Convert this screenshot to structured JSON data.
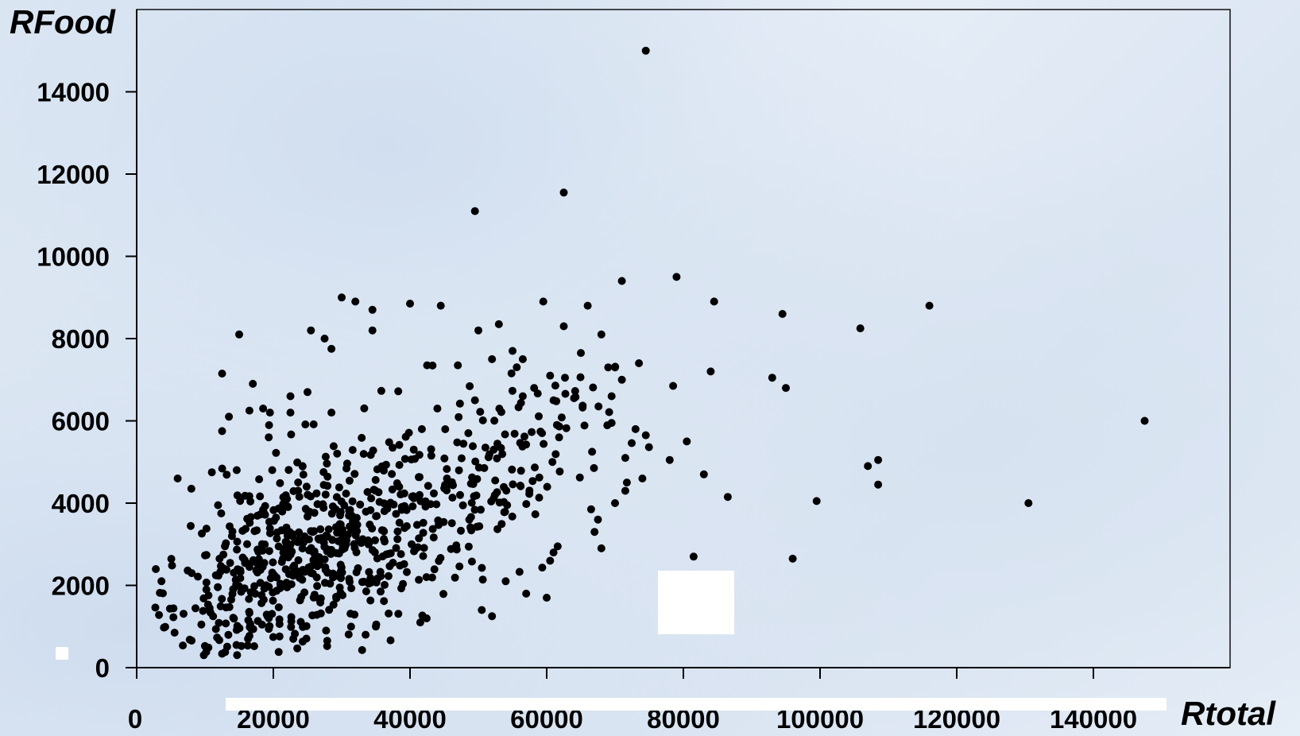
{
  "chart_data": {
    "type": "scatter",
    "title": "",
    "xlabel": "Rtotal",
    "ylabel": "RFood",
    "xlim": [
      0,
      160000
    ],
    "ylim": [
      0,
      16000
    ],
    "x_ticks": [
      0,
      20000,
      40000,
      60000,
      80000,
      100000,
      120000,
      140000
    ],
    "y_ticks": [
      0,
      2000,
      4000,
      6000,
      8000,
      10000,
      12000,
      14000
    ],
    "x_tick_labels": [
      "0",
      "20000",
      "40000",
      "60000",
      "80000",
      "100000",
      "120000",
      "140000"
    ],
    "y_tick_labels": [
      "0",
      "2000",
      "4000",
      "6000",
      "8000",
      "10000",
      "12000",
      "14000"
    ],
    "grid": false,
    "legend": "none",
    "marker_color": "#000000",
    "series": [
      {
        "points": [
          [
            74500,
            15000
          ],
          [
            62500,
            11550
          ],
          [
            49500,
            11100
          ],
          [
            71000,
            9400
          ],
          [
            79000,
            9500
          ],
          [
            84500,
            8900
          ],
          [
            59500,
            8900
          ],
          [
            94500,
            8600
          ],
          [
            105900,
            8250
          ],
          [
            116000,
            8800
          ],
          [
            66000,
            8800
          ],
          [
            40000,
            8850
          ],
          [
            44500,
            8800
          ],
          [
            30000,
            9000
          ],
          [
            32000,
            8900
          ],
          [
            34500,
            8700
          ],
          [
            62500,
            8300
          ],
          [
            53000,
            8350
          ],
          [
            50000,
            8200
          ],
          [
            34500,
            8200
          ],
          [
            25500,
            8200
          ],
          [
            27500,
            8000
          ],
          [
            15000,
            8100
          ],
          [
            68000,
            8100
          ],
          [
            28500,
            7750
          ],
          [
            55000,
            7700
          ],
          [
            65000,
            7650
          ],
          [
            73500,
            7400
          ],
          [
            70000,
            7300
          ],
          [
            69000,
            7300
          ],
          [
            56500,
            7500
          ],
          [
            52000,
            7500
          ],
          [
            47000,
            7350
          ],
          [
            42500,
            7350
          ],
          [
            12500,
            7150
          ],
          [
            84000,
            7200
          ],
          [
            93000,
            7050
          ],
          [
            95000,
            6800
          ],
          [
            78500,
            6850
          ],
          [
            71000,
            7000
          ],
          [
            69500,
            6600
          ],
          [
            60500,
            7100
          ],
          [
            17000,
            6900
          ],
          [
            22500,
            6600
          ],
          [
            25000,
            6700
          ],
          [
            64000,
            6550
          ],
          [
            61000,
            6500
          ],
          [
            56500,
            6600
          ],
          [
            44000,
            6300
          ],
          [
            49500,
            6500
          ],
          [
            18500,
            6300
          ],
          [
            19500,
            6200
          ],
          [
            16500,
            6250
          ],
          [
            22500,
            6200
          ],
          [
            13500,
            6100
          ],
          [
            12500,
            5750
          ],
          [
            28500,
            6200
          ],
          [
            147500,
            6000
          ],
          [
            73000,
            5800
          ],
          [
            74500,
            5650
          ],
          [
            69500,
            5950
          ],
          [
            61500,
            5900
          ],
          [
            80500,
            5500
          ],
          [
            83000,
            4700
          ],
          [
            86500,
            4150
          ],
          [
            99500,
            4050
          ],
          [
            130500,
            4000
          ],
          [
            108500,
            5050
          ],
          [
            107000,
            4900
          ],
          [
            108500,
            4450
          ],
          [
            96000,
            2650
          ],
          [
            81500,
            2700
          ],
          [
            78000,
            5050
          ],
          [
            71500,
            5100
          ],
          [
            70000,
            4000
          ],
          [
            71500,
            4300
          ],
          [
            74000,
            4600
          ],
          [
            66500,
            3850
          ],
          [
            67500,
            3600
          ],
          [
            67000,
            3300
          ],
          [
            68000,
            2900
          ],
          [
            60500,
            2600
          ],
          [
            61000,
            2800
          ],
          [
            60000,
            1700
          ],
          [
            57000,
            1800
          ],
          [
            54000,
            2100
          ],
          [
            52000,
            1250
          ],
          [
            50500,
            1400
          ],
          [
            41500,
            1100
          ],
          [
            35000,
            1000
          ],
          [
            33500,
            800
          ],
          [
            6000,
            4600
          ],
          [
            8000,
            4350
          ],
          [
            11000,
            4750
          ]
        ],
        "clusters": [
          {
            "center": [
              23000,
              2700
            ],
            "spread": [
              9000,
              1150
            ],
            "count": 480
          },
          {
            "center": [
              41000,
              3900
            ],
            "spread": [
              11000,
              1200
            ],
            "count": 170
          },
          {
            "center": [
              54000,
              4600
            ],
            "spread": [
              8000,
              1200
            ],
            "count": 80
          }
        ]
      }
    ]
  }
}
